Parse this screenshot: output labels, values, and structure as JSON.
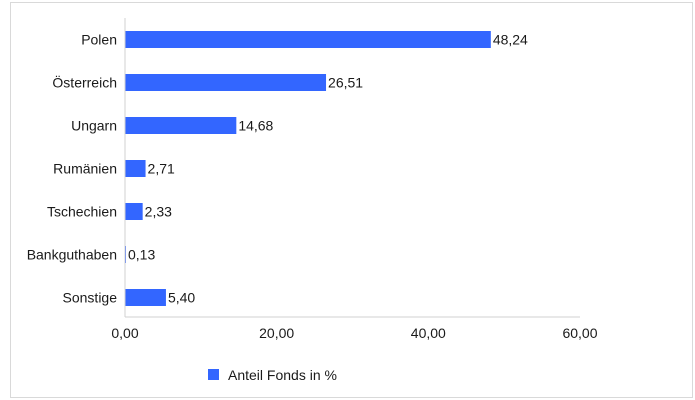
{
  "chart_data": {
    "type": "bar",
    "orientation": "horizontal",
    "categories": [
      "Polen",
      "Österreich",
      "Ungarn",
      "Rumänien",
      "Tschechien",
      "Bankguthaben",
      "Sonstige"
    ],
    "values": [
      48.24,
      26.51,
      14.68,
      2.71,
      2.33,
      0.13,
      5.4
    ],
    "value_labels": [
      "48,24",
      "26,51",
      "14,68",
      "2,71",
      "2,33",
      "0,13",
      "5,40"
    ],
    "xlim": [
      0,
      60
    ],
    "x_ticks": [
      0,
      20,
      40,
      60
    ],
    "x_tick_labels": [
      "0,00",
      "20,00",
      "40,00",
      "60,00"
    ],
    "series": [
      {
        "name": "Anteil Fonds in %",
        "color": "#3366ff"
      }
    ],
    "legend_position": "bottom",
    "grid": false
  }
}
